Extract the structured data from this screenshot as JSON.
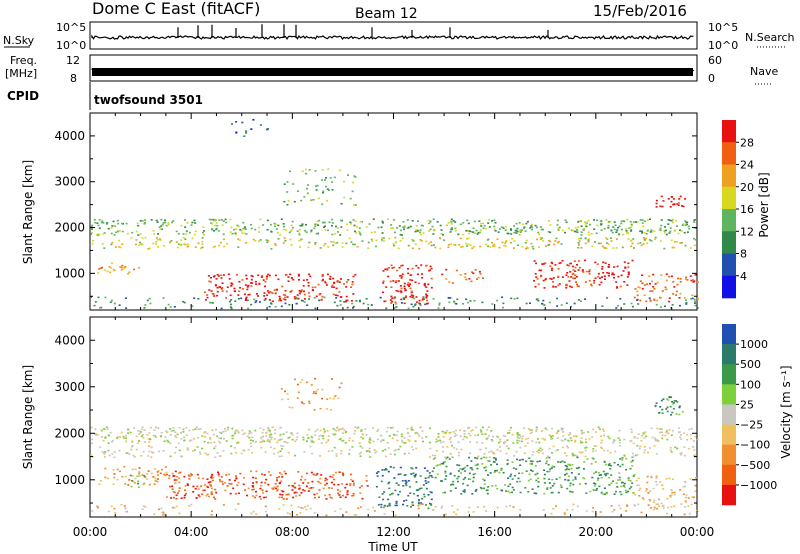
{
  "header": {
    "title": "Dome C East (fitACF)",
    "beam": "Beam 12",
    "date": "15/Feb/2016"
  },
  "status_panels": {
    "nsky_label": "N.Sky",
    "nsky_ticks": [
      "10^5",
      "10^0"
    ],
    "nsearch_label": "N.Search",
    "nsearch_ticks": [
      "10^5",
      "10^0"
    ],
    "freq_label_line1": "Freq.",
    "freq_label_line2": "[MHz]",
    "freq_ticks": [
      "12",
      "8"
    ],
    "nave_label": "Nave",
    "nave_ticks": [
      "60",
      "0"
    ],
    "cpid_label": "CPID",
    "cpid_value": "twofsound 3501"
  },
  "colors": {
    "power": [
      "#1010e6",
      "#2050b0",
      "#2f8a4a",
      "#5fb55f",
      "#d8d820",
      "#f0a020",
      "#f06010",
      "#e81010"
    ],
    "velocity": [
      "#e81010",
      "#f06010",
      "#f09030",
      "#f0c060",
      "#c8c8c0",
      "#7ed03a",
      "#3a9a4a",
      "#2b7a6a",
      "#2050b0"
    ]
  },
  "chart_data": [
    {
      "type": "heatmap",
      "name": "power",
      "xlabel": "",
      "ylabel": "Slant Range [km]",
      "x_ticks": [
        "00:00",
        "04:00",
        "08:00",
        "12:00",
        "16:00",
        "20:00",
        "00:00"
      ],
      "xlim_hours": [
        0,
        24
      ],
      "ylim": [
        200,
        4500
      ],
      "y_ticks": [
        1000,
        2000,
        3000,
        4000
      ],
      "colorbar": {
        "label": "Power [dB]",
        "ticks": [
          4,
          8,
          12,
          16,
          20,
          24,
          28
        ],
        "range": [
          0,
          32
        ]
      },
      "bands": [
        {
          "x0": 0,
          "x1": 24,
          "y0": 1850,
          "y1": 2200,
          "level": 3,
          "density": 0.55
        },
        {
          "x0": 0,
          "x1": 24,
          "y0": 1550,
          "y1": 1800,
          "level": 4,
          "density": 0.4
        },
        {
          "x0": 0.2,
          "x1": 2.2,
          "y0": 1000,
          "y1": 1250,
          "level": 5,
          "density": 0.45
        },
        {
          "x0": 4.5,
          "x1": 10.5,
          "y0": 400,
          "y1": 1000,
          "level": 7,
          "density": 0.5
        },
        {
          "x0": 11.5,
          "x1": 13.5,
          "y0": 350,
          "y1": 1200,
          "level": 7,
          "density": 0.55
        },
        {
          "x0": 13.8,
          "x1": 15.5,
          "y0": 800,
          "y1": 1100,
          "level": 6,
          "density": 0.35
        },
        {
          "x0": 17.5,
          "x1": 21.5,
          "y0": 700,
          "y1": 1300,
          "level": 7,
          "density": 0.5
        },
        {
          "x0": 21.5,
          "x1": 24,
          "y0": 400,
          "y1": 1000,
          "level": 6,
          "density": 0.4
        },
        {
          "x0": 22.3,
          "x1": 23.6,
          "y0": 2450,
          "y1": 2700,
          "level": 7,
          "density": 0.65
        },
        {
          "x0": 7.5,
          "x1": 10.5,
          "y0": 2500,
          "y1": 3300,
          "level": 3,
          "density": 0.2
        },
        {
          "x0": 5.5,
          "x1": 7,
          "y0": 3900,
          "y1": 4400,
          "level": 1,
          "density": 0.15
        },
        {
          "x0": 0,
          "x1": 24,
          "y0": 250,
          "y1": 500,
          "level": 2,
          "density": 0.25
        }
      ]
    },
    {
      "type": "heatmap",
      "name": "velocity",
      "xlabel": "Time UT",
      "ylabel": "Slant Range [km]",
      "x_ticks": [
        "00:00",
        "04:00",
        "08:00",
        "12:00",
        "16:00",
        "20:00",
        "00:00"
      ],
      "xlim_hours": [
        0,
        24
      ],
      "ylim": [
        200,
        4500
      ],
      "y_ticks": [
        1000,
        2000,
        3000,
        4000
      ],
      "colorbar": {
        "label": "Velocity [m s⁻¹]",
        "ticks": [
          "1000",
          "500",
          "100",
          "25",
          "−25",
          "−100",
          "−500",
          "−1000"
        ]
      },
      "bands": [
        {
          "x0": 0,
          "x1": 24,
          "y0": 1800,
          "y1": 2150,
          "level": 4,
          "density": 0.6
        },
        {
          "x0": 0,
          "x1": 24,
          "y0": 1500,
          "y1": 1750,
          "level": 4,
          "density": 0.35
        },
        {
          "x0": 0.3,
          "x1": 3,
          "y0": 900,
          "y1": 1300,
          "level": 2,
          "density": 0.4
        },
        {
          "x0": 1.5,
          "x1": 2.2,
          "y0": 850,
          "y1": 1150,
          "level": 5,
          "density": 0.5
        },
        {
          "x0": 3,
          "x1": 11,
          "y0": 600,
          "y1": 1200,
          "level": 1,
          "density": 0.5
        },
        {
          "x0": 11.3,
          "x1": 13.5,
          "y0": 400,
          "y1": 1300,
          "level": 7,
          "density": 0.5
        },
        {
          "x0": 13.5,
          "x1": 21.5,
          "y0": 700,
          "y1": 1500,
          "level": 6,
          "density": 0.45
        },
        {
          "x0": 22.3,
          "x1": 23.5,
          "y0": 2400,
          "y1": 2800,
          "level": 6,
          "density": 0.6
        },
        {
          "x0": 21.5,
          "x1": 24,
          "y0": 400,
          "y1": 1100,
          "level": 3,
          "density": 0.35
        },
        {
          "x0": 7.5,
          "x1": 10,
          "y0": 2500,
          "y1": 3200,
          "level": 2,
          "density": 0.2
        },
        {
          "x0": 0,
          "x1": 24,
          "y0": 250,
          "y1": 500,
          "level": 3,
          "density": 0.2
        }
      ]
    }
  ]
}
